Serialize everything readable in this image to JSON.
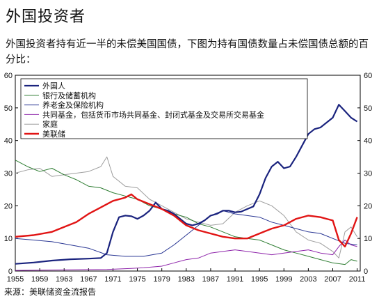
{
  "header": {
    "title": "外国投资者",
    "subtitle": "外国投资者持有近一半的未偿美国国债，下图为持有国债数量占未偿国债总额的百分比："
  },
  "source": "来源：美联储资金流报告",
  "chart_data": {
    "type": "line",
    "x_ticks": [
      "1955",
      "1959",
      "1963",
      "1967",
      "1971",
      "1975",
      "1979",
      "1983",
      "1987",
      "1991",
      "1995",
      "1999",
      "2003",
      "2007",
      "2011"
    ],
    "xlim": [
      1955,
      2011.5
    ],
    "ylim": [
      0,
      60
    ],
    "y_ticks": [
      "0",
      "10",
      "20",
      "30",
      "40",
      "50",
      "60"
    ],
    "grid": false,
    "legend_placement": "top-left",
    "series": [
      {
        "name": "外国人",
        "color": "#1a237e",
        "width": 2.2,
        "points": [
          [
            1955,
            2.2
          ],
          [
            1958,
            2.6
          ],
          [
            1961,
            3.2
          ],
          [
            1964,
            3.6
          ],
          [
            1967,
            3.8
          ],
          [
            1969,
            4.0
          ],
          [
            1970,
            5.5
          ],
          [
            1971,
            12.0
          ],
          [
            1972,
            16.5
          ],
          [
            1973,
            17.0
          ],
          [
            1974,
            16.8
          ],
          [
            1975,
            16.0
          ],
          [
            1976,
            17.0
          ],
          [
            1977,
            18.5
          ],
          [
            1978,
            21.0
          ],
          [
            1979,
            19.0
          ],
          [
            1980,
            18.5
          ],
          [
            1981,
            17.5
          ],
          [
            1982,
            16.0
          ],
          [
            1983,
            14.5
          ],
          [
            1984,
            14.0
          ],
          [
            1985,
            14.5
          ],
          [
            1986,
            15.5
          ],
          [
            1987,
            17.0
          ],
          [
            1988,
            17.5
          ],
          [
            1989,
            18.5
          ],
          [
            1990,
            18.5
          ],
          [
            1991,
            18.0
          ],
          [
            1992,
            18.2
          ],
          [
            1993,
            19.0
          ],
          [
            1994,
            19.8
          ],
          [
            1995,
            23.5
          ],
          [
            1996,
            28.5
          ],
          [
            1997,
            32.0
          ],
          [
            1998,
            33.5
          ],
          [
            1999,
            31.5
          ],
          [
            2000,
            32.0
          ],
          [
            2001,
            35.0
          ],
          [
            2002,
            38.5
          ],
          [
            2003,
            42.0
          ],
          [
            2004,
            43.5
          ],
          [
            2005,
            44.0
          ],
          [
            2006,
            45.5
          ],
          [
            2007,
            47.0
          ],
          [
            2008,
            51.0
          ],
          [
            2009,
            49.0
          ],
          [
            2010,
            47.0
          ],
          [
            2011,
            45.8
          ]
        ]
      },
      {
        "name": "银行及储蓄机构",
        "color": "#2e7d32",
        "width": 1.0,
        "points": [
          [
            1955,
            34.0
          ],
          [
            1957,
            32.0
          ],
          [
            1959,
            30.5
          ],
          [
            1961,
            31.5
          ],
          [
            1963,
            29.5
          ],
          [
            1965,
            28.0
          ],
          [
            1967,
            26.0
          ],
          [
            1969,
            25.5
          ],
          [
            1971,
            24.0
          ],
          [
            1973,
            23.0
          ],
          [
            1975,
            22.0
          ],
          [
            1977,
            20.0
          ],
          [
            1979,
            19.0
          ],
          [
            1981,
            17.5
          ],
          [
            1983,
            16.5
          ],
          [
            1985,
            14.5
          ],
          [
            1987,
            13.5
          ],
          [
            1989,
            12.0
          ],
          [
            1991,
            10.5
          ],
          [
            1993,
            10.0
          ],
          [
            1995,
            9.5
          ],
          [
            1997,
            8.0
          ],
          [
            1999,
            6.5
          ],
          [
            2001,
            5.5
          ],
          [
            2003,
            4.5
          ],
          [
            2005,
            3.5
          ],
          [
            2007,
            2.5
          ],
          [
            2009,
            2.0
          ],
          [
            2010,
            3.5
          ],
          [
            2011,
            3.0
          ]
        ]
      },
      {
        "name": "养老金及保险机构",
        "color": "#283593",
        "width": 1.0,
        "points": [
          [
            1955,
            10.0
          ],
          [
            1958,
            9.5
          ],
          [
            1961,
            9.0
          ],
          [
            1964,
            8.0
          ],
          [
            1967,
            7.0
          ],
          [
            1970,
            5.0
          ],
          [
            1973,
            4.5
          ],
          [
            1976,
            4.5
          ],
          [
            1979,
            5.5
          ],
          [
            1981,
            8.0
          ],
          [
            1983,
            11.0
          ],
          [
            1985,
            14.0
          ],
          [
            1987,
            17.0
          ],
          [
            1989,
            18.5
          ],
          [
            1991,
            17.5
          ],
          [
            1993,
            17.0
          ],
          [
            1995,
            16.5
          ],
          [
            1997,
            15.0
          ],
          [
            1999,
            14.0
          ],
          [
            2001,
            13.0
          ],
          [
            2003,
            12.0
          ],
          [
            2005,
            11.5
          ],
          [
            2007,
            10.0
          ],
          [
            2009,
            8.5
          ],
          [
            2011,
            8.0
          ]
        ]
      },
      {
        "name": "共同基金，包括货币市场共同基金、封闭式基金及交易所交易基金",
        "color": "#8e24aa",
        "width": 1.0,
        "points": [
          [
            1955,
            0.2
          ],
          [
            1960,
            0.3
          ],
          [
            1965,
            0.4
          ],
          [
            1970,
            0.5
          ],
          [
            1974,
            0.8
          ],
          [
            1976,
            1.0
          ],
          [
            1979,
            1.5
          ],
          [
            1981,
            2.5
          ],
          [
            1983,
            3.5
          ],
          [
            1985,
            4.0
          ],
          [
            1987,
            5.5
          ],
          [
            1989,
            6.0
          ],
          [
            1991,
            6.5
          ],
          [
            1993,
            6.0
          ],
          [
            1995,
            5.5
          ],
          [
            1997,
            5.0
          ],
          [
            1999,
            5.5
          ],
          [
            2001,
            6.0
          ],
          [
            2003,
            6.5
          ],
          [
            2005,
            5.5
          ],
          [
            2007,
            5.0
          ],
          [
            2008,
            7.5
          ],
          [
            2009,
            9.5
          ],
          [
            2010,
            8.0
          ],
          [
            2011,
            7.5
          ]
        ]
      },
      {
        "name": "家庭",
        "color": "#9e9e9e",
        "width": 1.0,
        "points": [
          [
            1955,
            30.0
          ],
          [
            1957,
            31.0
          ],
          [
            1959,
            31.5
          ],
          [
            1961,
            29.0
          ],
          [
            1963,
            29.5
          ],
          [
            1965,
            30.0
          ],
          [
            1967,
            30.5
          ],
          [
            1969,
            32.0
          ],
          [
            1970,
            35.0
          ],
          [
            1971,
            29.0
          ],
          [
            1973,
            26.0
          ],
          [
            1975,
            25.5
          ],
          [
            1977,
            22.0
          ],
          [
            1979,
            20.0
          ],
          [
            1981,
            18.0
          ],
          [
            1983,
            16.0
          ],
          [
            1985,
            15.0
          ],
          [
            1987,
            14.0
          ],
          [
            1989,
            14.5
          ],
          [
            1991,
            18.0
          ],
          [
            1993,
            20.0
          ],
          [
            1995,
            21.5
          ],
          [
            1997,
            20.0
          ],
          [
            1999,
            17.0
          ],
          [
            2001,
            12.0
          ],
          [
            2003,
            9.5
          ],
          [
            2005,
            8.5
          ],
          [
            2007,
            6.0
          ],
          [
            2008,
            4.0
          ],
          [
            2009,
            12.0
          ],
          [
            2010,
            13.5
          ],
          [
            2011,
            10.5
          ]
        ]
      },
      {
        "name": "美联储",
        "color": "#e11414",
        "width": 2.4,
        "points": [
          [
            1955,
            10.5
          ],
          [
            1958,
            11.0
          ],
          [
            1961,
            12.0
          ],
          [
            1963,
            13.5
          ],
          [
            1965,
            15.0
          ],
          [
            1967,
            17.5
          ],
          [
            1969,
            19.5
          ],
          [
            1971,
            21.5
          ],
          [
            1973,
            22.5
          ],
          [
            1974,
            23.5
          ],
          [
            1975,
            22.0
          ],
          [
            1977,
            20.5
          ],
          [
            1979,
            19.0
          ],
          [
            1981,
            17.0
          ],
          [
            1983,
            14.0
          ],
          [
            1985,
            12.5
          ],
          [
            1987,
            11.5
          ],
          [
            1989,
            10.5
          ],
          [
            1991,
            10.0
          ],
          [
            1993,
            10.0
          ],
          [
            1995,
            11.5
          ],
          [
            1997,
            13.0
          ],
          [
            1999,
            14.0
          ],
          [
            2001,
            16.0
          ],
          [
            2003,
            17.0
          ],
          [
            2005,
            16.5
          ],
          [
            2006,
            16.0
          ],
          [
            2007,
            15.5
          ],
          [
            2008,
            9.5
          ],
          [
            2009,
            7.5
          ],
          [
            2010,
            11.5
          ],
          [
            2011,
            16.5
          ]
        ]
      }
    ]
  }
}
